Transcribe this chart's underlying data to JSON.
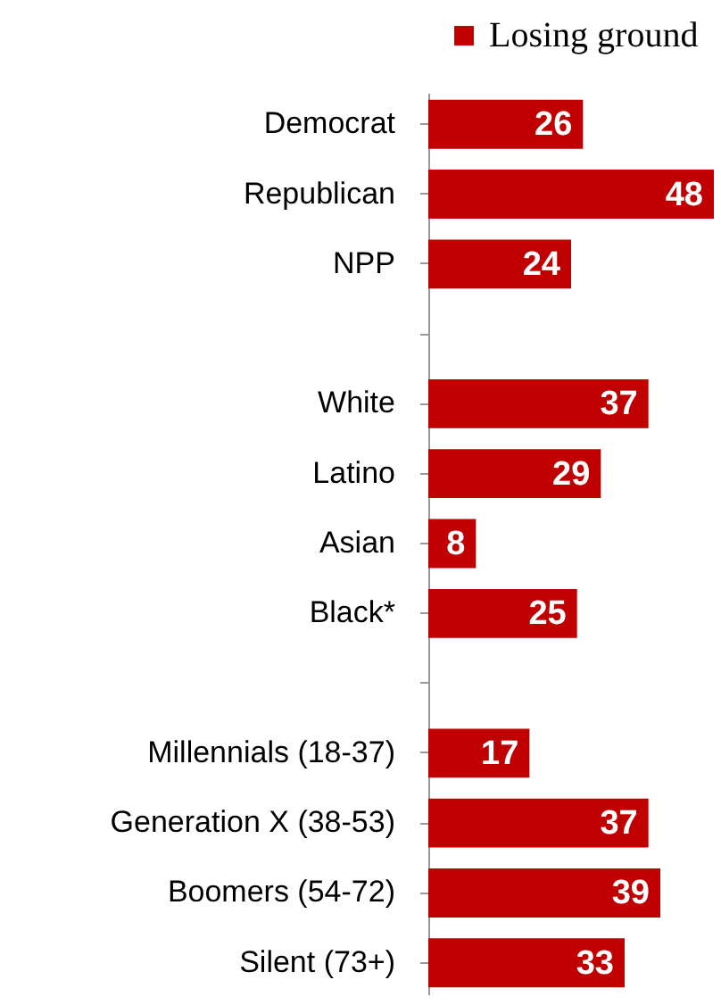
{
  "chart_data": {
    "type": "bar",
    "orientation": "horizontal",
    "categories": [
      "Democrat",
      "Republican",
      "NPP",
      null,
      "White",
      "Latino",
      "Asian",
      "Black*",
      null,
      "Millennials (18-37)",
      "Generation X (38-53)",
      "Boomers (54-72)",
      "Silent (73+)"
    ],
    "series": [
      {
        "name": "Losing ground",
        "color": "#c00000",
        "values": [
          26,
          48,
          24,
          null,
          37,
          29,
          8,
          25,
          null,
          17,
          37,
          39,
          33
        ]
      }
    ],
    "data_labels": true,
    "legend": "top right"
  }
}
